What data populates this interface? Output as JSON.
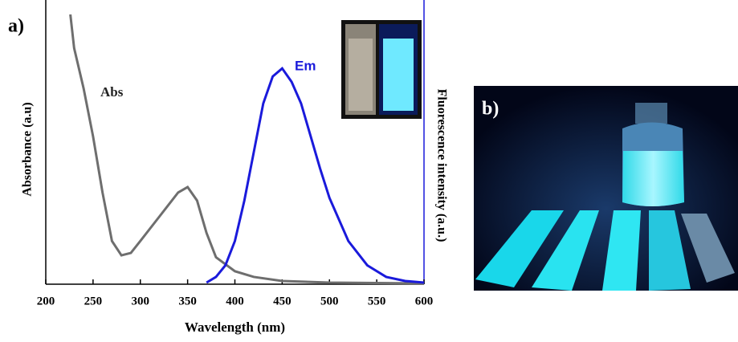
{
  "chart_data": {
    "type": "line",
    "panel_label": "a)",
    "xlabel": "Wavelength (nm)",
    "ylabel": "Absorbance (a.u)",
    "y2label": "Fluorescence intensity (a.u.)",
    "xlim": [
      200,
      600
    ],
    "xticks": [
      200,
      250,
      300,
      350,
      400,
      450,
      500,
      550,
      600
    ],
    "ylim": [
      0,
      1
    ],
    "series": [
      {
        "name": "Abs",
        "color": "#6e6e6e",
        "x": [
          226,
          230,
          240,
          250,
          260,
          270,
          280,
          290,
          300,
          320,
          340,
          350,
          360,
          370,
          380,
          400,
          420,
          450,
          500,
          600
        ],
        "values": [
          1.0,
          0.875,
          0.726,
          0.548,
          0.34,
          0.16,
          0.107,
          0.116,
          0.16,
          0.25,
          0.34,
          0.36,
          0.31,
          0.19,
          0.1,
          0.048,
          0.027,
          0.012,
          0.006,
          0.003
        ]
      },
      {
        "name": "Em",
        "color": "#1a1adb",
        "x": [
          370,
          380,
          390,
          400,
          410,
          420,
          430,
          440,
          450,
          460,
          470,
          480,
          490,
          500,
          520,
          540,
          560,
          580,
          600
        ],
        "values": [
          0.006,
          0.027,
          0.07,
          0.16,
          0.31,
          0.49,
          0.67,
          0.77,
          0.8,
          0.75,
          0.67,
          0.55,
          0.43,
          0.32,
          0.16,
          0.07,
          0.027,
          0.012,
          0.006
        ]
      }
    ]
  },
  "photo": {
    "panel_label": "b)"
  }
}
